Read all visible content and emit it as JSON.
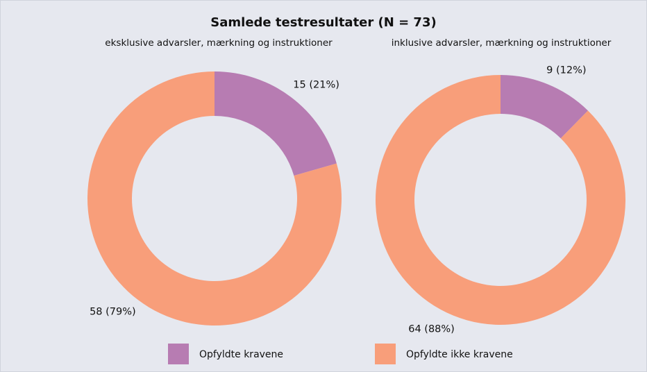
{
  "title": "Samlede testresultater (N = 73)",
  "chart_data": [
    {
      "type": "pie",
      "subtitle": "eksklusive advarsler, mærkning og instruktioner",
      "categories": [
        "Opfyldte kravene",
        "Opfyldte ikke kravene"
      ],
      "values": [
        15,
        58
      ],
      "value_labels": [
        "15 (21%)",
        "58 (79%)"
      ],
      "colors": [
        "#b77cb2",
        "#f89e7a"
      ],
      "donut": true
    },
    {
      "type": "pie",
      "subtitle": "inklusive advarsler, mærkning og instruktioner",
      "categories": [
        "Opfyldte kravene",
        "Opfyldte ikke kravene"
      ],
      "values": [
        9,
        64
      ],
      "value_labels": [
        "9 (12%)",
        "64 (88%)"
      ],
      "colors": [
        "#b77cb2",
        "#f89e7a"
      ],
      "donut": true
    }
  ]
}
